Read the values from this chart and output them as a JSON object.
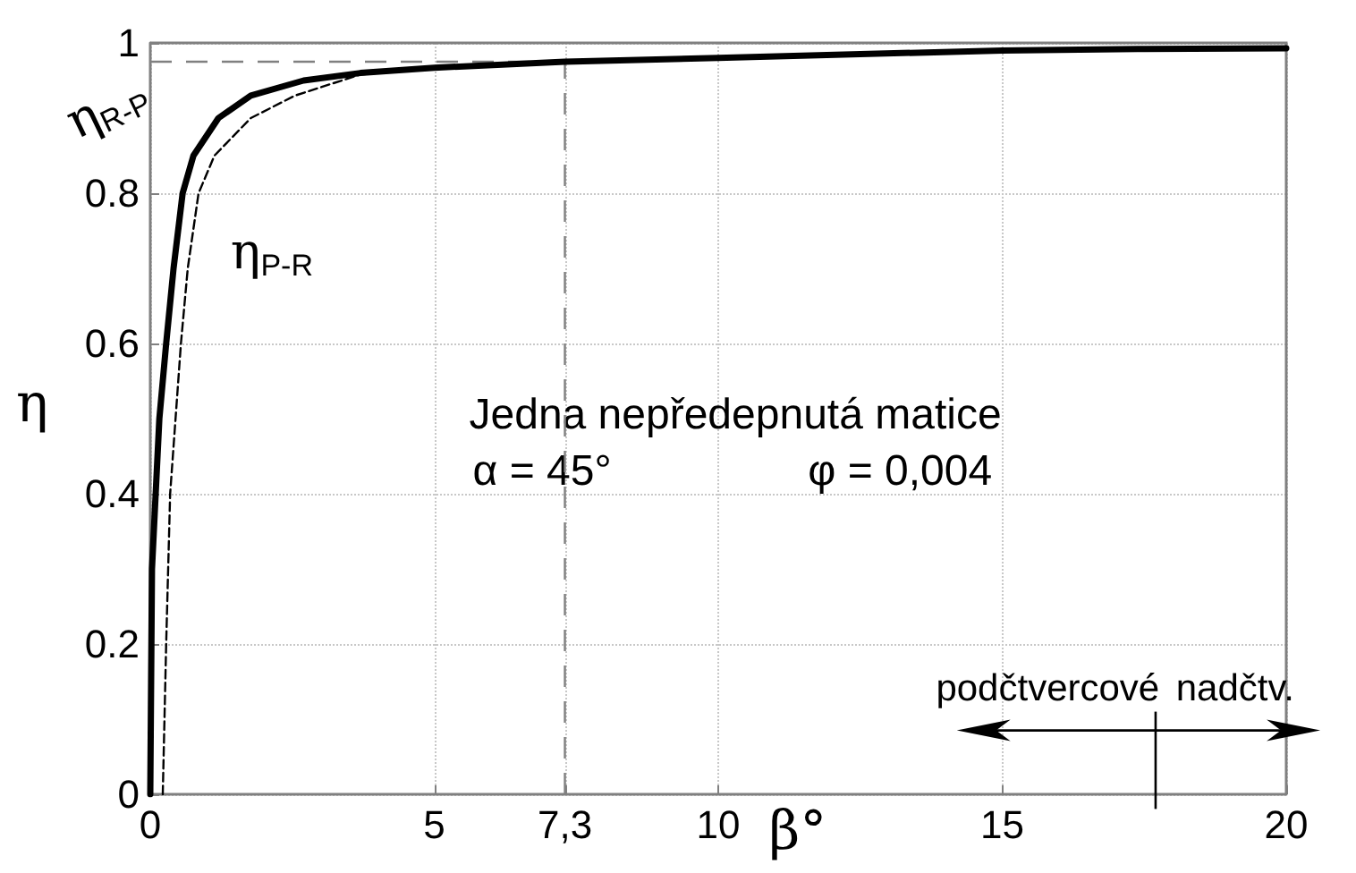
{
  "chart_data": {
    "type": "line",
    "xlabel": "β°",
    "ylabel": "η",
    "xlim": [
      0,
      20
    ],
    "ylim": [
      0,
      1
    ],
    "xticks": [
      0,
      5,
      {
        "value": 7.3,
        "label": "7,3"
      },
      10,
      15,
      20
    ],
    "yticks": [
      0,
      0.2,
      0.4,
      0.6,
      0.8,
      1
    ],
    "grid": true,
    "legend": false,
    "marker": "none",
    "series": [
      {
        "name": "η$_{R-P}$",
        "color": "#000000",
        "line_style": "solid",
        "x": [
          0,
          0.03,
          0.16,
          0.28,
          0.41,
          0.57,
          0.76,
          1.2,
          1.77,
          2.7,
          3.7,
          5,
          7.3,
          10,
          12.5,
          15,
          17.5,
          20
        ],
        "values": [
          0,
          0.3,
          0.5,
          0.6,
          0.7,
          0.8,
          0.85,
          0.9,
          0.93,
          0.95,
          0.96,
          0.967,
          0.975,
          0.98,
          0.985,
          0.99,
          0.992,
          0.993
        ]
      },
      {
        "name": "η$_{P-R}$",
        "color": "#000000",
        "line_style": "dashed",
        "x": [
          0.22,
          0.28,
          0.35,
          0.54,
          0.66,
          0.85,
          1.13,
          1.77,
          2.55,
          3.7,
          5,
          7.3,
          10,
          15,
          20
        ],
        "values": [
          0,
          0.2,
          0.4,
          0.6,
          0.7,
          0.8,
          0.85,
          0.9,
          0.93,
          0.958,
          0.966,
          0.975,
          0.98,
          0.99,
          0.993
        ]
      }
    ],
    "ref_lines": [
      {
        "axis": "x",
        "value": 7.3,
        "line_style": "dashed",
        "color": "#808080"
      },
      {
        "axis": "y",
        "value": 0.975,
        "line_style": "dashed",
        "color": "#808080"
      }
    ],
    "annotations": [
      "Jedna nepředepnutá matice",
      "α = 45°",
      "φ = 0,004",
      "podčtvercové",
      "nadčtv."
    ]
  }
}
